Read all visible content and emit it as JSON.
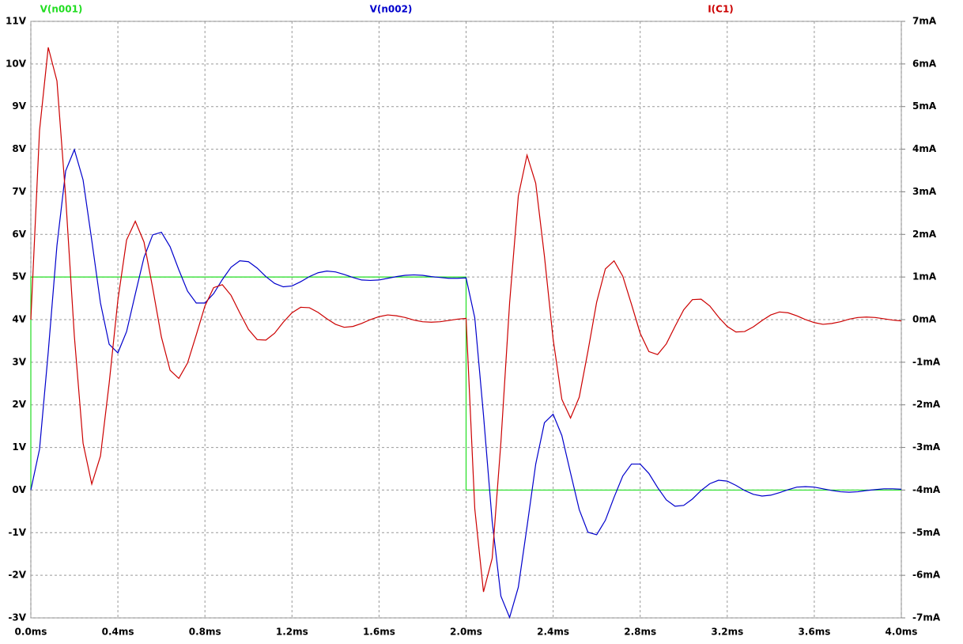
{
  "chart_data": {
    "type": "line",
    "x": [
      0,
      0.04,
      0.08,
      0.12,
      0.16,
      0.2,
      0.24,
      0.28,
      0.32,
      0.36,
      0.4,
      0.44,
      0.48,
      0.52,
      0.56,
      0.6,
      0.64,
      0.68,
      0.72,
      0.76,
      0.8,
      0.84,
      0.88,
      0.92,
      0.96,
      1.0,
      1.04,
      1.08,
      1.12,
      1.16,
      1.2,
      1.24,
      1.28,
      1.32,
      1.36,
      1.4,
      1.44,
      1.48,
      1.52,
      1.56,
      1.6,
      1.64,
      1.68,
      1.72,
      1.76,
      1.8,
      1.84,
      1.88,
      1.92,
      1.96,
      2.0,
      2.04,
      2.08,
      2.12,
      2.16,
      2.2,
      2.24,
      2.28,
      2.32,
      2.36,
      2.4,
      2.44,
      2.48,
      2.52,
      2.56,
      2.6,
      2.64,
      2.68,
      2.72,
      2.76,
      2.8,
      2.84,
      2.88,
      2.92,
      2.96,
      3.0,
      3.04,
      3.08,
      3.12,
      3.16,
      3.2,
      3.24,
      3.28,
      3.32,
      3.36,
      3.4,
      3.44,
      3.48,
      3.52,
      3.56,
      3.6,
      3.64,
      3.68,
      3.72,
      3.76,
      3.8,
      3.84,
      3.88,
      3.92,
      3.96,
      4.0
    ],
    "series": [
      {
        "name": "V(n001)",
        "color": "#22dd22",
        "x": [
          0,
          0,
          2.0,
          2.0,
          4.0
        ],
        "values": [
          0,
          5,
          5,
          0,
          0
        ]
      },
      {
        "name": "V(n002)",
        "color": "#0000cc",
        "values": [
          0,
          0.96,
          3.24,
          5.74,
          7.49,
          7.99,
          7.28,
          5.86,
          4.39,
          3.42,
          3.22,
          3.72,
          4.6,
          5.46,
          5.99,
          6.05,
          5.71,
          5.17,
          4.67,
          4.39,
          4.39,
          4.61,
          4.94,
          5.23,
          5.38,
          5.36,
          5.21,
          5.01,
          4.85,
          4.77,
          4.79,
          4.89,
          5.01,
          5.1,
          5.14,
          5.12,
          5.06,
          4.99,
          4.93,
          4.92,
          4.93,
          4.97,
          5.01,
          5.04,
          5.05,
          5.04,
          5.01,
          4.99,
          4.97,
          4.97,
          4.98,
          4.04,
          1.76,
          -0.74,
          -2.49,
          -2.99,
          -2.28,
          -0.86,
          0.61,
          1.58,
          1.78,
          1.28,
          0.4,
          -0.46,
          -0.99,
          -1.05,
          -0.71,
          -0.17,
          0.33,
          0.61,
          0.61,
          0.39,
          0.06,
          -0.23,
          -0.38,
          -0.36,
          -0.21,
          -0.01,
          0.15,
          0.23,
          0.21,
          0.11,
          -0.01,
          -0.1,
          -0.14,
          -0.12,
          -0.06,
          0.01,
          0.07,
          0.08,
          0.07,
          0.03,
          -0.01,
          -0.04,
          -0.05,
          -0.04,
          -0.01,
          0.01,
          0.03,
          0.03,
          0.02
        ]
      },
      {
        "name": "I(C1)",
        "color": "#cc0000",
        "axis": "y2",
        "values": [
          0,
          4.44,
          6.39,
          5.6,
          2.88,
          -0.39,
          -2.9,
          -3.86,
          -3.2,
          -1.49,
          0.46,
          1.87,
          2.31,
          1.82,
          0.74,
          -0.41,
          -1.19,
          -1.38,
          -1.02,
          -0.36,
          0.32,
          0.75,
          0.82,
          0.57,
          0.16,
          -0.23,
          -0.47,
          -0.48,
          -0.32,
          -0.06,
          0.16,
          0.29,
          0.28,
          0.17,
          0.02,
          -0.11,
          -0.18,
          -0.16,
          -0.09,
          0.0,
          0.07,
          0.11,
          0.09,
          0.05,
          -0.01,
          -0.05,
          -0.06,
          -0.05,
          -0.02,
          0.01,
          0.03,
          -4.44,
          -6.39,
          -5.6,
          -2.88,
          0.39,
          2.9,
          3.86,
          3.2,
          1.49,
          -0.46,
          -1.87,
          -2.31,
          -1.82,
          -0.74,
          0.41,
          1.19,
          1.38,
          1.02,
          0.36,
          -0.32,
          -0.75,
          -0.82,
          -0.57,
          -0.16,
          0.23,
          0.47,
          0.48,
          0.32,
          0.06,
          -0.16,
          -0.29,
          -0.28,
          -0.17,
          -0.02,
          0.11,
          0.18,
          0.16,
          0.09,
          0.0,
          -0.07,
          -0.11,
          -0.09,
          -0.05,
          0.01,
          0.05,
          0.06,
          0.05,
          0.02,
          -0.01,
          -0.03
        ]
      }
    ],
    "xlim": [
      0,
      4.0
    ],
    "xticks": [
      {
        "value": 0,
        "label": "0.0ms"
      },
      {
        "value": 0.4,
        "label": "0.4ms"
      },
      {
        "value": 0.8,
        "label": "0.8ms"
      },
      {
        "value": 1.2,
        "label": "1.2ms"
      },
      {
        "value": 1.6,
        "label": "1.6ms"
      },
      {
        "value": 2.0,
        "label": "2.0ms"
      },
      {
        "value": 2.4,
        "label": "2.4ms"
      },
      {
        "value": 2.8,
        "label": "2.8ms"
      },
      {
        "value": 3.2,
        "label": "3.2ms"
      },
      {
        "value": 3.6,
        "label": "3.6ms"
      },
      {
        "value": 4.0,
        "label": "4.0ms"
      }
    ],
    "ylim": [
      -3,
      11
    ],
    "yticks": [
      {
        "value": -3,
        "label": "-3V"
      },
      {
        "value": -2,
        "label": "-2V"
      },
      {
        "value": -1,
        "label": "-1V"
      },
      {
        "value": 0,
        "label": "0V"
      },
      {
        "value": 1,
        "label": "1V"
      },
      {
        "value": 2,
        "label": "2V"
      },
      {
        "value": 3,
        "label": "3V"
      },
      {
        "value": 4,
        "label": "4V"
      },
      {
        "value": 5,
        "label": "5V"
      },
      {
        "value": 6,
        "label": "6V"
      },
      {
        "value": 7,
        "label": "7V"
      },
      {
        "value": 8,
        "label": "8V"
      },
      {
        "value": 9,
        "label": "9V"
      },
      {
        "value": 10,
        "label": "10V"
      },
      {
        "value": 11,
        "label": "11V"
      }
    ],
    "y2lim": [
      -7,
      7
    ],
    "y2ticks": [
      {
        "value": -7,
        "label": "-7mA"
      },
      {
        "value": -6,
        "label": "-6mA"
      },
      {
        "value": -5,
        "label": "-5mA"
      },
      {
        "value": -4,
        "label": "-4mA"
      },
      {
        "value": -3,
        "label": "-3mA"
      },
      {
        "value": -2,
        "label": "-2mA"
      },
      {
        "value": -1,
        "label": "-1mA"
      },
      {
        "value": 0,
        "label": "0mA"
      },
      {
        "value": 1,
        "label": "1mA"
      },
      {
        "value": 2,
        "label": "2mA"
      },
      {
        "value": 3,
        "label": "3mA"
      },
      {
        "value": 4,
        "label": "4mA"
      },
      {
        "value": 5,
        "label": "5mA"
      },
      {
        "value": 6,
        "label": "6mA"
      },
      {
        "value": 7,
        "label": "7mA"
      }
    ],
    "grid": true
  }
}
